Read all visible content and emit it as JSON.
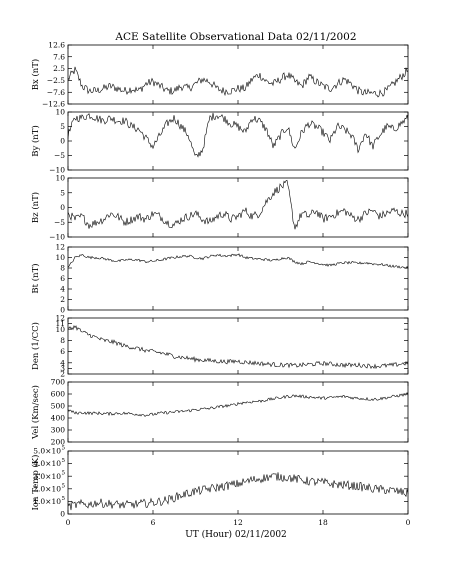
{
  "chart_data": {
    "type": "line",
    "title": "ACE Satellite Observational Data   02/11/2002",
    "xlabel": "UT (Hour)  02/11/2002",
    "x_range": [
      0,
      24
    ],
    "x_ticks": [
      "0",
      "6",
      "12",
      "18",
      "0"
    ],
    "panels": [
      {
        "id": "bx",
        "ylabel": "Bx (nT)",
        "ylim": [
          -12.6,
          12.6
        ],
        "y_ticks": [
          "12.6",
          "7.6",
          "2.5",
          "−2.5",
          "−7.6",
          "−12.6"
        ],
        "y_tick_values": [
          12.6,
          7.6,
          2.5,
          -2.5,
          -7.6,
          -12.6
        ],
        "series": [
          {
            "x": [
              0,
              0.5,
              1,
              1.5,
              2,
              2.5,
              3,
              3.5,
              4,
              4.5,
              5,
              5.5,
              6,
              6.5,
              7,
              7.5,
              8,
              8.5,
              9,
              9.5,
              10,
              10.5,
              11,
              11.5,
              12,
              12.5,
              13,
              13.5,
              14,
              14.5,
              15,
              15.5,
              16,
              16.5,
              17,
              17.5,
              18,
              18.5,
              19,
              19.5,
              20,
              20.5,
              21,
              21.5,
              22,
              22.5,
              23,
              23.5,
              24
            ],
            "values": [
              -2,
              2,
              -5,
              -7,
              -7,
              -6,
              -5,
              -6,
              -7,
              -6,
              -7,
              -4,
              -3,
              -5,
              -7,
              -7,
              -5,
              -6,
              -4,
              -2,
              -3,
              -6,
              -7,
              -7,
              -6,
              -6,
              -2,
              0,
              -3,
              -4,
              -2,
              0,
              -3,
              -5,
              -1,
              -3,
              -5,
              -6,
              -4,
              -2,
              -4,
              -7,
              -8,
              -8,
              -8,
              -7,
              -4,
              -1,
              2
            ]
          }
        ]
      },
      {
        "id": "by",
        "ylabel": "By (nT)",
        "ylim": [
          -10,
          10
        ],
        "y_ticks": [
          "10",
          "5",
          "0",
          "−5",
          "−10"
        ],
        "y_tick_values": [
          10,
          5,
          0,
          -5,
          -10
        ],
        "series": [
          {
            "x": [
              0,
              0.5,
              1,
              1.5,
              2,
              2.5,
              3,
              3.5,
              4,
              4.5,
              5,
              5.5,
              6,
              6.5,
              7,
              7.5,
              8,
              8.5,
              9,
              9.5,
              10,
              10.5,
              11,
              11.5,
              12,
              12.5,
              13,
              13.5,
              14,
              14.5,
              15,
              15.5,
              16,
              16.5,
              17,
              17.5,
              18,
              18.5,
              19,
              19.5,
              20,
              20.5,
              21,
              21.5,
              22,
              22.5,
              23,
              23.5,
              24
            ],
            "values": [
              2,
              8,
              8,
              9,
              8,
              7,
              8,
              7,
              7,
              5,
              4,
              1,
              -2,
              2,
              6,
              8,
              5,
              2,
              -6,
              -3,
              8,
              9,
              8,
              6,
              5,
              3,
              8,
              7,
              4,
              -2,
              2,
              5,
              -3,
              3,
              6,
              5,
              3,
              0,
              5,
              4,
              2,
              -3,
              3,
              -2,
              2,
              5,
              4,
              6,
              8
            ]
          }
        ]
      },
      {
        "id": "bz",
        "ylabel": "Bz (nT)",
        "ylim": [
          -10,
          10
        ],
        "y_ticks": [
          "10",
          "5",
          "0",
          "−5",
          "−10"
        ],
        "y_tick_values": [
          10,
          5,
          0,
          -5,
          -10
        ],
        "series": [
          {
            "x": [
              0,
              0.5,
              1,
              1.5,
              2,
              2.5,
              3,
              3.5,
              4,
              4.5,
              5,
              5.5,
              6,
              6.5,
              7,
              7.5,
              8,
              8.5,
              9,
              9.5,
              10,
              10.5,
              11,
              11.5,
              12,
              12.5,
              13,
              13.5,
              14,
              14.5,
              15,
              15.5,
              16,
              16.5,
              17,
              17.5,
              18,
              18.5,
              19,
              19.5,
              20,
              20.5,
              21,
              21.5,
              22,
              22.5,
              23,
              23.5,
              24
            ],
            "values": [
              -2,
              -4,
              -3,
              -6,
              -5,
              -4,
              -2,
              -3,
              -5,
              -4,
              -3,
              -4,
              -2,
              -3,
              -5,
              -6,
              -4,
              -3,
              -2,
              -4,
              -5,
              -3,
              -2,
              -4,
              -3,
              -1,
              -3,
              -2,
              2,
              5,
              7,
              8,
              -7,
              -2,
              -3,
              -1,
              -4,
              -3,
              -2,
              -1,
              -3,
              -4,
              -2,
              -1,
              -3,
              -2,
              -1,
              -2,
              -2
            ]
          }
        ]
      },
      {
        "id": "bt",
        "ylabel": "Bt (nT)",
        "ylim": [
          0,
          12
        ],
        "y_ticks": [
          "12",
          "10",
          "8",
          "6",
          "4",
          "2",
          "0"
        ],
        "y_tick_values": [
          12,
          10,
          8,
          6,
          4,
          2,
          0
        ],
        "series": [
          {
            "x": [
              0,
              0.5,
              1,
              1.5,
              2,
              2.5,
              3,
              3.5,
              4,
              4.5,
              5,
              5.5,
              6,
              6.5,
              7,
              7.5,
              8,
              8.5,
              9,
              9.5,
              10,
              10.5,
              11,
              11.5,
              12,
              12.5,
              13,
              13.5,
              14,
              14.5,
              15,
              15.5,
              16,
              16.5,
              17,
              17.5,
              18,
              18.5,
              19,
              19.5,
              20,
              20.5,
              21,
              21.5,
              22,
              22.5,
              23,
              23.5,
              24
            ],
            "values": [
              8,
              10,
              10.5,
              10,
              10,
              9.8,
              9.5,
              9.3,
              9.5,
              9.6,
              9.5,
              9.2,
              9.3,
              9.5,
              9.8,
              10,
              10.2,
              10.3,
              10,
              9.8,
              10.2,
              10.5,
              10.3,
              10.4,
              10.6,
              10,
              9.8,
              9.7,
              9.6,
              9.4,
              9.8,
              10,
              9.2,
              8.8,
              9.2,
              9.0,
              8.7,
              8.5,
              8.8,
              9.0,
              9.0,
              8.9,
              9.0,
              8.8,
              8.7,
              8.5,
              8.3,
              8.2,
              8
            ]
          }
        ]
      },
      {
        "id": "den",
        "ylabel": "Den (1/CC)",
        "ylim": [
          2,
          12
        ],
        "y_ticks": [
          "12",
          "11",
          "10",
          "8",
          "6",
          "4",
          "3",
          "2"
        ],
        "y_tick_values": [
          12,
          11,
          10,
          8,
          6,
          4,
          3,
          2
        ],
        "series": [
          {
            "x": [
              0,
              0.5,
              1,
              1.5,
              2,
              2.5,
              3,
              3.5,
              4,
              4.5,
              5,
              5.5,
              6,
              6.5,
              7,
              7.5,
              8,
              8.5,
              9,
              9.5,
              10,
              10.5,
              11,
              11.5,
              12,
              12.5,
              13,
              13.5,
              14,
              14.5,
              15,
              15.5,
              16,
              16.5,
              17,
              17.5,
              18,
              18.5,
              19,
              19.5,
              20,
              20.5,
              21,
              21.5,
              22,
              22.5,
              23,
              23.5,
              24
            ],
            "values": [
              10,
              10.5,
              9.5,
              9,
              8.5,
              8,
              7.8,
              7.5,
              7,
              6.8,
              6.5,
              6.2,
              6,
              5.8,
              5.5,
              5.2,
              5,
              4.8,
              4.6,
              4.5,
              4.4,
              4.3,
              4.2,
              4.2,
              4.3,
              4.1,
              4,
              3.9,
              3.8,
              3.7,
              3.6,
              3.6,
              3.5,
              3.6,
              3.7,
              3.8,
              3.9,
              3.8,
              3.7,
              3.6,
              3.6,
              3.6,
              3.5,
              3.4,
              3.4,
              3.5,
              3.6,
              3.8,
              4
            ]
          }
        ]
      },
      {
        "id": "vel",
        "ylabel": "Vel (Km/sec)",
        "ylim": [
          200,
          700
        ],
        "y_ticks": [
          "700",
          "600",
          "500",
          "400",
          "300",
          "200"
        ],
        "y_tick_values": [
          700,
          600,
          500,
          400,
          300,
          200
        ],
        "series": [
          {
            "x": [
              0,
              0.5,
              1,
              1.5,
              2,
              2.5,
              3,
              3.5,
              4,
              4.5,
              5,
              5.5,
              6,
              6.5,
              7,
              7.5,
              8,
              8.5,
              9,
              9.5,
              10,
              10.5,
              11,
              11.5,
              12,
              12.5,
              13,
              13.5,
              14,
              14.5,
              15,
              15.5,
              16,
              16.5,
              17,
              17.5,
              18,
              18.5,
              19,
              19.5,
              20,
              20.5,
              21,
              21.5,
              22,
              22.5,
              23,
              23.5,
              24
            ],
            "values": [
              470,
              440,
              445,
              440,
              440,
              438,
              435,
              440,
              438,
              435,
              430,
              425,
              430,
              440,
              445,
              450,
              455,
              460,
              470,
              475,
              480,
              490,
              500,
              505,
              520,
              530,
              535,
              540,
              550,
              560,
              570,
              580,
              585,
              580,
              575,
              570,
              565,
              570,
              575,
              580,
              570,
              565,
              560,
              555,
              560,
              570,
              580,
              590,
              600
            ]
          }
        ]
      },
      {
        "id": "temp",
        "ylabel": "Ion Temp (K)",
        "ylim": [
          0,
          500000
        ],
        "y_ticks": [
          "5.0×10",
          "4.0×10",
          "3.0×10",
          "2.0×10",
          "1.0×10",
          "0"
        ],
        "y_tick_exponent": "5",
        "y_tick_values": [
          500000,
          400000,
          300000,
          200000,
          100000,
          0
        ],
        "series": [
          {
            "x": [
              0,
              0.5,
              1,
              1.5,
              2,
              2.5,
              3,
              3.5,
              4,
              4.5,
              5,
              5.5,
              6,
              6.5,
              7,
              7.5,
              8,
              8.5,
              9,
              9.5,
              10,
              10.5,
              11,
              11.5,
              12,
              12.5,
              13,
              13.5,
              14,
              14.5,
              15,
              15.5,
              16,
              16.5,
              17,
              17.5,
              18,
              18.5,
              19,
              19.5,
              20,
              20.5,
              21,
              21.5,
              22,
              22.5,
              23,
              23.5,
              24
            ],
            "values": [
              60000,
              70000,
              80000,
              75000,
              90000,
              85000,
              80000,
              75000,
              70000,
              75000,
              80000,
              85000,
              90000,
              100000,
              110000,
              130000,
              150000,
              165000,
              180000,
              190000,
              200000,
              210000,
              220000,
              230000,
              240000,
              255000,
              270000,
              280000,
              290000,
              300000,
              295000,
              290000,
              280000,
              270000,
              260000,
              255000,
              250000,
              240000,
              235000,
              230000,
              225000,
              220000,
              210000,
              200000,
              195000,
              190000,
              185000,
              175000,
              160000
            ]
          }
        ]
      }
    ]
  }
}
